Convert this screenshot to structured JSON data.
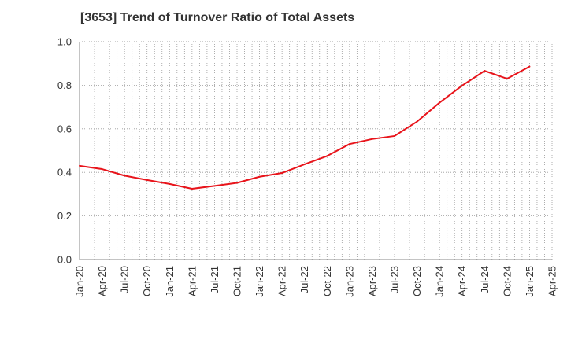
{
  "chart_data": {
    "type": "line",
    "title": "[3653]  Trend of Turnover Ratio of Total Assets",
    "xlabel": "",
    "ylabel": "",
    "x_ticks": [
      "Jan-20",
      "Apr-20",
      "Jul-20",
      "Oct-20",
      "Jan-21",
      "Apr-21",
      "Jul-21",
      "Oct-21",
      "Jan-22",
      "Apr-22",
      "Jul-22",
      "Oct-22",
      "Jan-23",
      "Apr-23",
      "Jul-23",
      "Oct-23",
      "Jan-24",
      "Apr-24",
      "Jul-24",
      "Oct-24",
      "Jan-25",
      "Apr-25"
    ],
    "y_ticks": [
      "0.0",
      "0.2",
      "0.4",
      "0.6",
      "0.8",
      "1.0"
    ],
    "ylim": [
      0,
      1.0
    ],
    "grid": true,
    "legend": "none",
    "colors": {
      "line": "#e8141b",
      "grid": "#999999",
      "axis": "#888888"
    },
    "series": [
      {
        "x": [
          "Jan-20",
          "Apr-20",
          "Jul-20",
          "Oct-20",
          "Jan-21",
          "Apr-21",
          "Jul-21",
          "Oct-21",
          "Jan-22",
          "Apr-22",
          "Jul-22",
          "Oct-22",
          "Jan-23",
          "Apr-23",
          "Jul-23",
          "Oct-23",
          "Jan-24",
          "Apr-24",
          "Jul-24",
          "Oct-24",
          "Jan-25"
        ],
        "values": [
          0.43,
          0.415,
          0.385,
          0.365,
          0.347,
          0.325,
          0.338,
          0.352,
          0.38,
          0.397,
          0.437,
          0.475,
          0.53,
          0.553,
          0.567,
          0.633,
          0.72,
          0.798,
          0.866,
          0.83,
          0.886
        ]
      }
    ]
  }
}
